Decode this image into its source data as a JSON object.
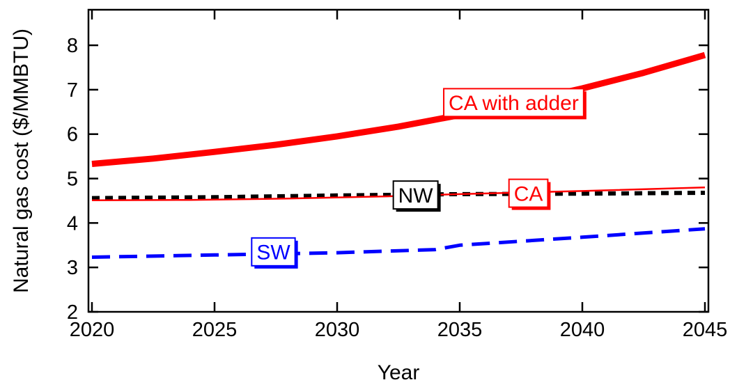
{
  "chart_data": {
    "type": "line",
    "title": "",
    "xlabel": "Year",
    "ylabel": "Natural gas cost ($/MMBTU)",
    "xlim": [
      2020,
      2045
    ],
    "ylim": [
      2,
      8.8
    ],
    "xticks": [
      2020,
      2025,
      2030,
      2035,
      2040,
      2045
    ],
    "yticks": [
      2,
      3,
      4,
      5,
      6,
      7,
      8
    ],
    "grid": false,
    "series": [
      {
        "name": "CA with adder",
        "color": "#ff0000",
        "style": "solid-thick",
        "x": [
          2020,
          2022.5,
          2025,
          2027.5,
          2030,
          2032.5,
          2035,
          2037.5,
          2040,
          2042.5,
          2045
        ],
        "y": [
          5.33,
          5.45,
          5.6,
          5.76,
          5.95,
          6.17,
          6.43,
          6.72,
          7.03,
          7.38,
          7.78
        ]
      },
      {
        "name": "NW",
        "color": "#000000",
        "style": "dotted",
        "x": [
          2020,
          2025,
          2030,
          2035,
          2040,
          2045
        ],
        "y": [
          4.56,
          4.58,
          4.62,
          4.65,
          4.66,
          4.68
        ]
      },
      {
        "name": "CA",
        "color": "#ff0000",
        "style": "solid-thin",
        "x": [
          2020,
          2024,
          2028,
          2032,
          2035,
          2040,
          2045
        ],
        "y": [
          4.51,
          4.52,
          4.55,
          4.6,
          4.65,
          4.72,
          4.8
        ]
      },
      {
        "name": "SW",
        "color": "#0000ff",
        "style": "dashed",
        "x": [
          2020,
          2025,
          2030,
          2034,
          2035,
          2040,
          2045
        ],
        "y": [
          3.23,
          3.28,
          3.33,
          3.4,
          3.5,
          3.68,
          3.87
        ]
      }
    ],
    "annotations": [
      {
        "text": "CA with adder",
        "series": "CA with adder",
        "color": "#ff0000",
        "x": 2037.2,
        "y": 6.71
      },
      {
        "text": "NW",
        "series": "NW",
        "color": "#000000",
        "x": 2033.2,
        "y": 4.63
      },
      {
        "text": "CA",
        "series": "CA",
        "color": "#ff0000",
        "x": 2037.8,
        "y": 4.67
      },
      {
        "text": "SW",
        "series": "SW",
        "color": "#0000ff",
        "x": 2027.4,
        "y": 3.35
      }
    ]
  }
}
